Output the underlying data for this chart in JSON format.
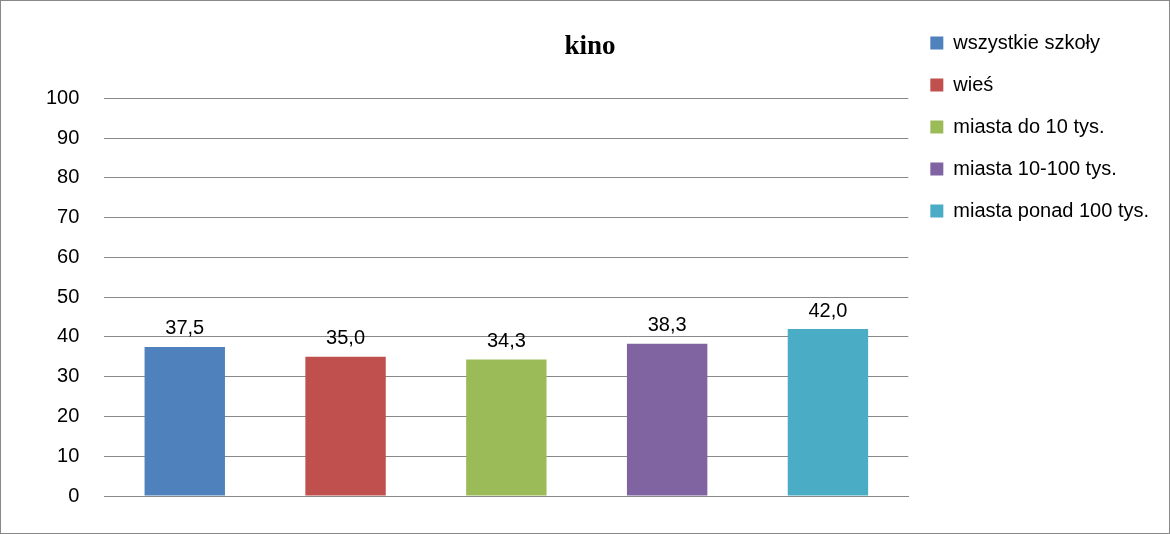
{
  "chart_data": {
    "type": "bar",
    "title": "kino",
    "categories": [
      null
    ],
    "series": [
      {
        "name": "wszystkie szkoły",
        "color": "#4f81bd",
        "values": [
          37.5
        ],
        "value_labels": [
          "37,5"
        ]
      },
      {
        "name": "wieś",
        "color": "#c0504d",
        "values": [
          35.0
        ],
        "value_labels": [
          "35,0"
        ]
      },
      {
        "name": "miasta do 10 tys.",
        "color": "#9bbb59",
        "values": [
          34.3
        ],
        "value_labels": [
          "34,3"
        ]
      },
      {
        "name": "miasta 10-100 tys.",
        "color": "#8064a2",
        "values": [
          38.3
        ],
        "value_labels": [
          "38,3"
        ]
      },
      {
        "name": "miasta ponad 100 tys.",
        "color": "#4bacc6",
        "values": [
          42.0
        ],
        "value_labels": [
          "42,0"
        ]
      }
    ],
    "ylim": [
      0,
      100
    ],
    "yticks": [
      0,
      10,
      20,
      30,
      40,
      50,
      60,
      70,
      80,
      90,
      100
    ],
    "grid": "y",
    "legend": "right",
    "tick_labels": "y"
  }
}
